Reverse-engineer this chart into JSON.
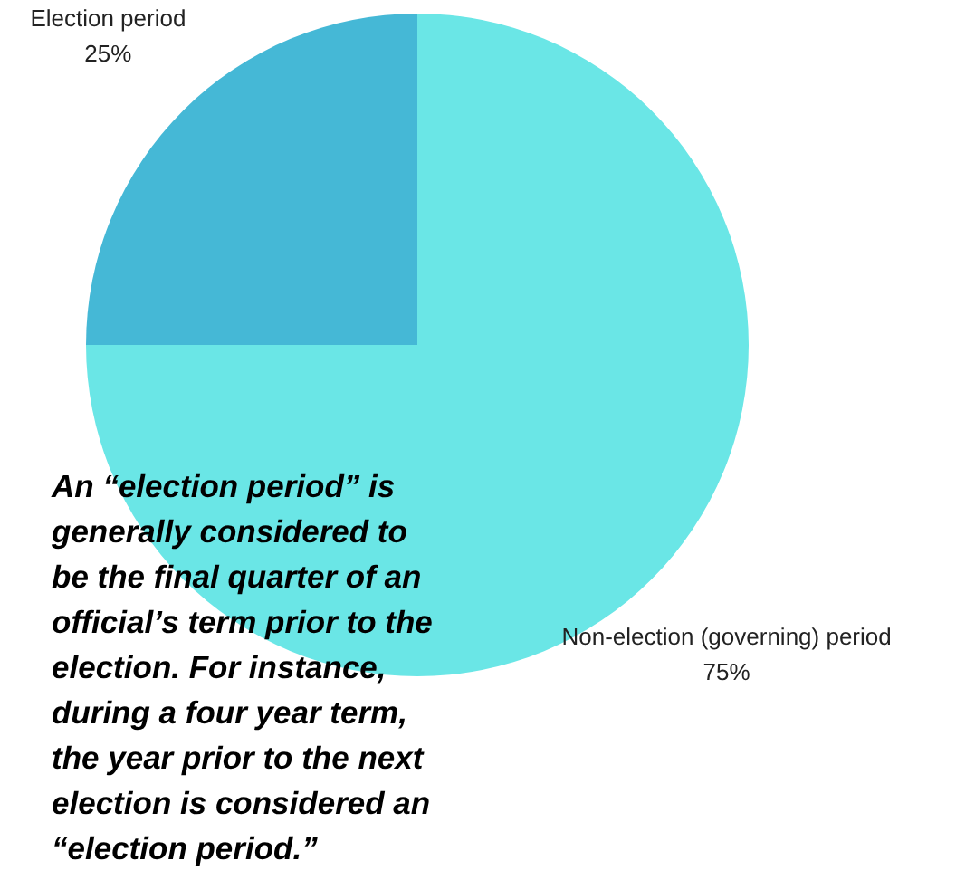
{
  "chart_data": {
    "type": "pie",
    "categories": [
      "Election period",
      "Non-election (governing) period"
    ],
    "values": [
      25,
      75
    ],
    "colors": [
      "#45b8d6",
      "#6ae6e6"
    ],
    "value_labels": [
      "25%",
      "75%"
    ],
    "annotations": [
      "An “election period” is\ngenerally considered to\nbe the final quarter of an\nofficial’s term prior to the\nelection. For instance,\nduring a four year term,\nthe year prior to the next\nelection is considered an\n“election period.”"
    ]
  }
}
